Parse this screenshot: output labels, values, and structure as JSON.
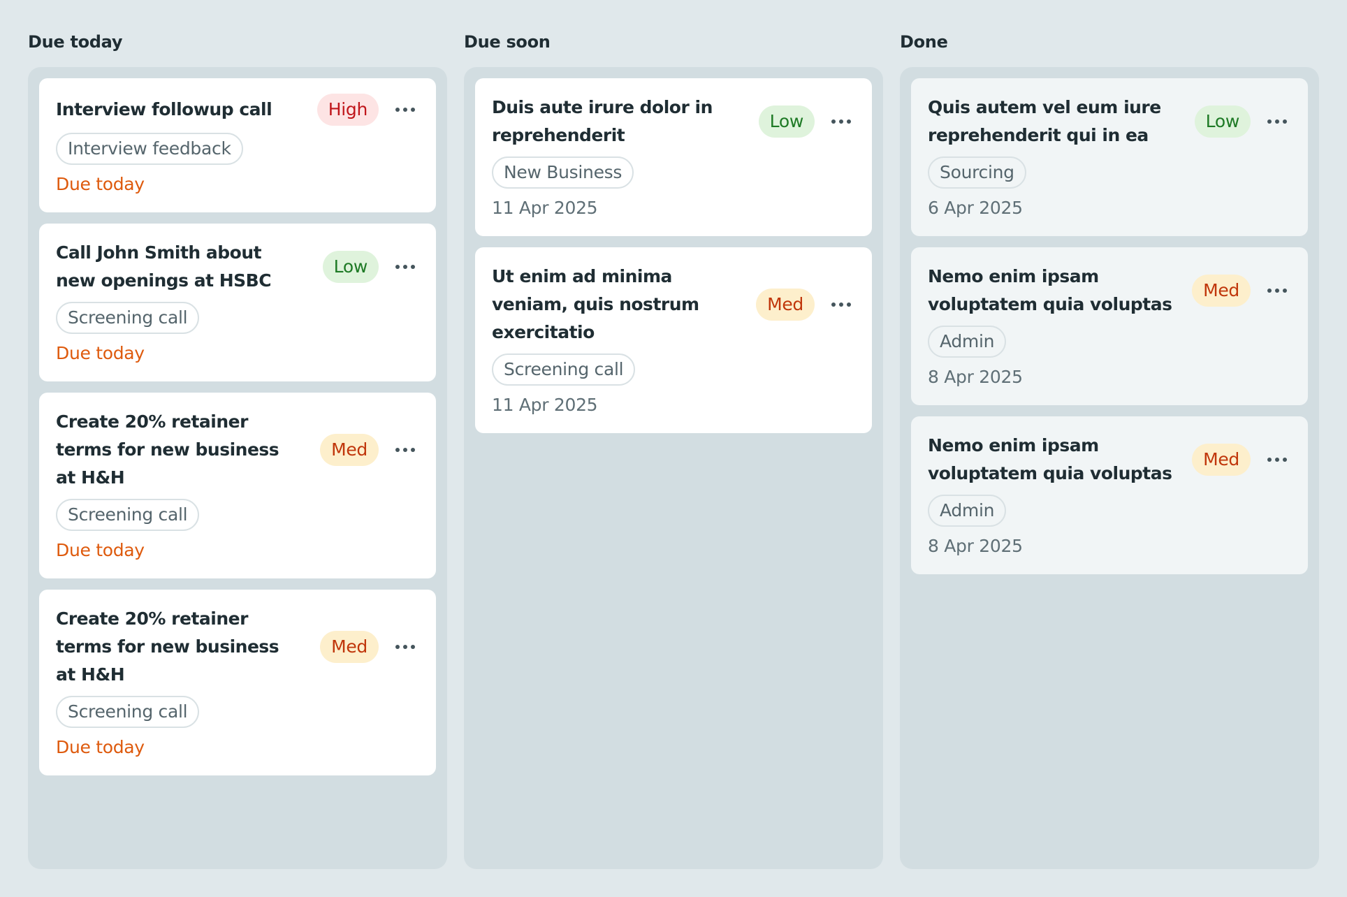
{
  "colors": {
    "background": "#e0e8eb",
    "column_background": "#d2dde1",
    "high": "#c0161b",
    "low": "#1e7a25",
    "med": "#c0360b",
    "due_today": "#de5a0d"
  },
  "columns": [
    {
      "title": "Due today",
      "cards": [
        {
          "title": "Interview followup call",
          "priority": "High",
          "tag": "Interview feedback",
          "due": "Due today"
        },
        {
          "title": "Call John Smith about new openings at HSBC",
          "priority": "Low",
          "tag": "Screening call",
          "due": "Due today"
        },
        {
          "title": "Create 20% retainer terms for new business at H&H",
          "priority": "Med",
          "tag": "Screening call",
          "due": "Due today"
        },
        {
          "title": "Create 20% retainer terms for new business at H&H",
          "priority": "Med",
          "tag": "Screening call",
          "due": "Due today"
        }
      ]
    },
    {
      "title": "Due soon",
      "cards": [
        {
          "title": "Duis aute irure dolor in reprehenderit",
          "priority": "Low",
          "tag": "New Business",
          "due": "11 Apr 2025"
        },
        {
          "title": "Ut enim ad minima veniam, quis nostrum exercitatio",
          "priority": "Med",
          "tag": "Screening call",
          "due": "11 Apr 2025"
        }
      ]
    },
    {
      "title": "Done",
      "cards": [
        {
          "title": "Quis autem vel eum iure reprehenderit qui in ea",
          "priority": "Low",
          "tag": "Sourcing",
          "due": "6 Apr 2025"
        },
        {
          "title": "Nemo enim ipsam voluptatem quia voluptas",
          "priority": "Med",
          "tag": "Admin",
          "due": "8 Apr 2025"
        },
        {
          "title": "Nemo enim ipsam voluptatem quia voluptas",
          "priority": "Med",
          "tag": "Admin",
          "due": "8 Apr 2025"
        }
      ]
    }
  ]
}
